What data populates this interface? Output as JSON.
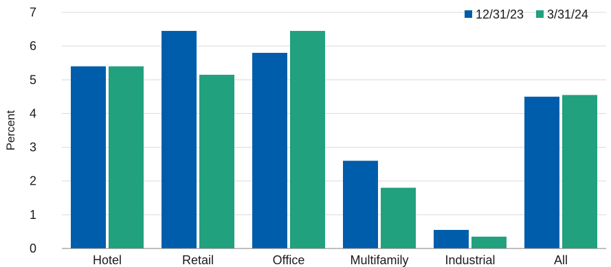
{
  "chart_data": {
    "type": "bar",
    "title": "",
    "xlabel": "",
    "ylabel": "Percent",
    "ylim": [
      0,
      7
    ],
    "yticks": [
      0,
      1,
      2,
      3,
      4,
      5,
      6,
      7
    ],
    "grid": true,
    "legend_position": "top-right",
    "categories": [
      "Hotel",
      "Retail",
      "Office",
      "Multifamily",
      "Industrial",
      "All"
    ],
    "series": [
      {
        "name": "12/31/23",
        "color": "#005dab",
        "values": [
          5.4,
          6.45,
          5.8,
          2.6,
          0.55,
          4.5
        ]
      },
      {
        "name": "3/31/24",
        "color": "#21a17d",
        "values": [
          5.4,
          5.15,
          6.45,
          1.8,
          0.35,
          4.55
        ]
      }
    ]
  }
}
